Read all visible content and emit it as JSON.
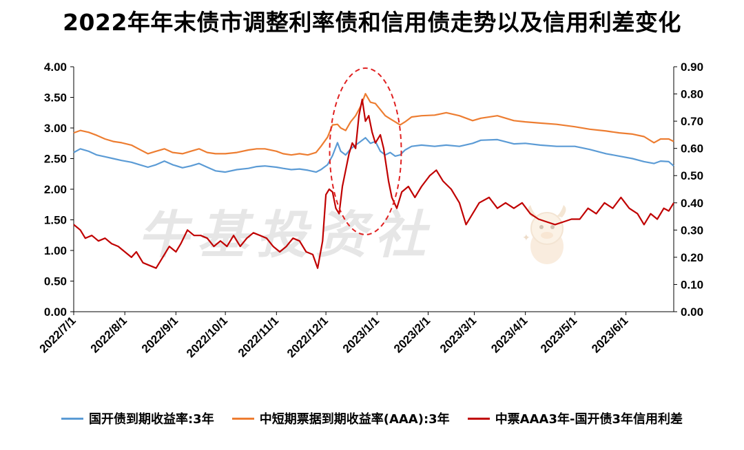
{
  "title": "2022年年末债市调整利率债和信用债走势以及信用利差变化",
  "watermark": "牛基投资社",
  "colors": {
    "blue": "#5B9BD5",
    "orange": "#ED7D31",
    "red": "#C00000",
    "axis": "#000000",
    "highlight": "#E02020"
  },
  "legend": [
    {
      "label": "国开债到期收益率:3年",
      "color": "#5B9BD5"
    },
    {
      "label": "中短期票据到期收益率(AAA):3年",
      "color": "#ED7D31"
    },
    {
      "label": "中票AAA3年-国开债3年信用利差",
      "color": "#C00000"
    }
  ],
  "chart_data": {
    "type": "line",
    "title": "2022年年末债市调整利率债和信用债走势以及信用利差变化",
    "x_tick_labels": [
      "2022/7/1",
      "2022/8/1",
      "2022/9/1",
      "2022/10/1",
      "2022/11/1",
      "2022/12/1",
      "2023/1/1",
      "2023/2/1",
      "2023/3/1",
      "2023/4/1",
      "2023/5/1",
      "2023/6/1"
    ],
    "x_range": [
      "2022/7/1",
      "2023/6/30"
    ],
    "y_left": {
      "lim": [
        0,
        4
      ],
      "ticks": [
        "0.00",
        "0.50",
        "1.00",
        "1.50",
        "2.00",
        "2.50",
        "3.00",
        "3.50",
        "4.00"
      ]
    },
    "y_right": {
      "lim": [
        0,
        0.9
      ],
      "ticks": [
        "0.00",
        "0.10",
        "0.20",
        "0.30",
        "0.40",
        "0.50",
        "0.60",
        "0.70",
        "0.80",
        "0.90"
      ]
    },
    "annotation": "dashed ellipse highlighting the December 2022 spike",
    "series": [
      {
        "name": "国开债到期收益率:3年",
        "axis": "left",
        "color": "#5B9BD5",
        "points": [
          [
            "2022/7/1",
            2.6
          ],
          [
            "2022/7/5",
            2.66
          ],
          [
            "2022/7/10",
            2.62
          ],
          [
            "2022/7/15",
            2.56
          ],
          [
            "2022/7/20",
            2.53
          ],
          [
            "2022/7/25",
            2.5
          ],
          [
            "2022/7/30",
            2.47
          ],
          [
            "2022/8/5",
            2.44
          ],
          [
            "2022/8/10",
            2.4
          ],
          [
            "2022/8/15",
            2.36
          ],
          [
            "2022/8/20",
            2.4
          ],
          [
            "2022/8/25",
            2.46
          ],
          [
            "2022/8/30",
            2.4
          ],
          [
            "2022/9/5",
            2.35
          ],
          [
            "2022/9/10",
            2.38
          ],
          [
            "2022/9/15",
            2.42
          ],
          [
            "2022/9/20",
            2.36
          ],
          [
            "2022/9/25",
            2.3
          ],
          [
            "2022/10/1",
            2.28
          ],
          [
            "2022/10/8",
            2.32
          ],
          [
            "2022/10/15",
            2.34
          ],
          [
            "2022/10/20",
            2.37
          ],
          [
            "2022/10/25",
            2.38
          ],
          [
            "2022/11/1",
            2.36
          ],
          [
            "2022/11/5",
            2.34
          ],
          [
            "2022/11/10",
            2.32
          ],
          [
            "2022/11/15",
            2.33
          ],
          [
            "2022/11/20",
            2.31
          ],
          [
            "2022/11/25",
            2.28
          ],
          [
            "2022/11/28",
            2.32
          ],
          [
            "2022/12/2",
            2.4
          ],
          [
            "2022/12/5",
            2.55
          ],
          [
            "2022/12/8",
            2.76
          ],
          [
            "2022/12/10",
            2.62
          ],
          [
            "2022/12/13",
            2.56
          ],
          [
            "2022/12/16",
            2.66
          ],
          [
            "2022/12/19",
            2.72
          ],
          [
            "2022/12/22",
            2.78
          ],
          [
            "2022/12/25",
            2.84
          ],
          [
            "2022/12/28",
            2.75
          ],
          [
            "2022/12/31",
            2.78
          ],
          [
            "2023/1/3",
            2.62
          ],
          [
            "2023/1/6",
            2.56
          ],
          [
            "2023/1/9",
            2.6
          ],
          [
            "2023/1/12",
            2.54
          ],
          [
            "2023/1/15",
            2.56
          ],
          [
            "2023/1/18",
            2.64
          ],
          [
            "2023/1/22",
            2.7
          ],
          [
            "2023/1/28",
            2.72
          ],
          [
            "2023/2/5",
            2.7
          ],
          [
            "2023/2/12",
            2.72
          ],
          [
            "2023/2/20",
            2.7
          ],
          [
            "2023/2/28",
            2.75
          ],
          [
            "2023/3/5",
            2.8
          ],
          [
            "2023/3/15",
            2.81
          ],
          [
            "2023/3/25",
            2.74
          ],
          [
            "2023/4/1",
            2.75
          ],
          [
            "2023/4/10",
            2.72
          ],
          [
            "2023/4/20",
            2.7
          ],
          [
            "2023/5/1",
            2.7
          ],
          [
            "2023/5/10",
            2.65
          ],
          [
            "2023/5/20",
            2.58
          ],
          [
            "2023/5/28",
            2.54
          ],
          [
            "2023/6/5",
            2.5
          ],
          [
            "2023/6/12",
            2.45
          ],
          [
            "2023/6/18",
            2.42
          ],
          [
            "2023/6/22",
            2.46
          ],
          [
            "2023/6/27",
            2.45
          ],
          [
            "2023/6/30",
            2.38
          ]
        ]
      },
      {
        "name": "中短期票据到期收益率(AAA):3年",
        "axis": "left",
        "color": "#ED7D31",
        "points": [
          [
            "2022/7/1",
            2.92
          ],
          [
            "2022/7/5",
            2.96
          ],
          [
            "2022/7/10",
            2.93
          ],
          [
            "2022/7/15",
            2.88
          ],
          [
            "2022/7/20",
            2.82
          ],
          [
            "2022/7/25",
            2.78
          ],
          [
            "2022/7/30",
            2.76
          ],
          [
            "2022/8/5",
            2.72
          ],
          [
            "2022/8/10",
            2.65
          ],
          [
            "2022/8/15",
            2.58
          ],
          [
            "2022/8/20",
            2.62
          ],
          [
            "2022/8/25",
            2.66
          ],
          [
            "2022/8/30",
            2.6
          ],
          [
            "2022/9/5",
            2.58
          ],
          [
            "2022/9/10",
            2.62
          ],
          [
            "2022/9/15",
            2.66
          ],
          [
            "2022/9/20",
            2.6
          ],
          [
            "2022/9/25",
            2.58
          ],
          [
            "2022/10/1",
            2.58
          ],
          [
            "2022/10/8",
            2.6
          ],
          [
            "2022/10/15",
            2.64
          ],
          [
            "2022/10/20",
            2.66
          ],
          [
            "2022/10/25",
            2.66
          ],
          [
            "2022/11/1",
            2.62
          ],
          [
            "2022/11/5",
            2.58
          ],
          [
            "2022/11/10",
            2.56
          ],
          [
            "2022/11/15",
            2.58
          ],
          [
            "2022/11/20",
            2.56
          ],
          [
            "2022/11/25",
            2.6
          ],
          [
            "2022/11/28",
            2.7
          ],
          [
            "2022/12/2",
            2.85
          ],
          [
            "2022/12/5",
            3.05
          ],
          [
            "2022/12/8",
            3.06
          ],
          [
            "2022/12/10",
            3.0
          ],
          [
            "2022/12/13",
            2.96
          ],
          [
            "2022/12/16",
            3.1
          ],
          [
            "2022/12/19",
            3.2
          ],
          [
            "2022/12/22",
            3.35
          ],
          [
            "2022/12/25",
            3.56
          ],
          [
            "2022/12/28",
            3.42
          ],
          [
            "2022/12/31",
            3.4
          ],
          [
            "2023/1/3",
            3.3
          ],
          [
            "2023/1/6",
            3.2
          ],
          [
            "2023/1/9",
            3.15
          ],
          [
            "2023/1/12",
            3.1
          ],
          [
            "2023/1/15",
            3.05
          ],
          [
            "2023/1/18",
            3.1
          ],
          [
            "2023/1/22",
            3.18
          ],
          [
            "2023/1/28",
            3.2
          ],
          [
            "2023/2/5",
            3.21
          ],
          [
            "2023/2/12",
            3.25
          ],
          [
            "2023/2/20",
            3.2
          ],
          [
            "2023/2/28",
            3.12
          ],
          [
            "2023/3/5",
            3.16
          ],
          [
            "2023/3/15",
            3.2
          ],
          [
            "2023/3/25",
            3.12
          ],
          [
            "2023/4/1",
            3.1
          ],
          [
            "2023/4/10",
            3.08
          ],
          [
            "2023/4/20",
            3.06
          ],
          [
            "2023/5/1",
            3.02
          ],
          [
            "2023/5/10",
            2.98
          ],
          [
            "2023/5/20",
            2.95
          ],
          [
            "2023/5/28",
            2.92
          ],
          [
            "2023/6/5",
            2.9
          ],
          [
            "2023/6/12",
            2.86
          ],
          [
            "2023/6/18",
            2.76
          ],
          [
            "2023/6/22",
            2.82
          ],
          [
            "2023/6/27",
            2.82
          ],
          [
            "2023/6/30",
            2.78
          ]
        ]
      },
      {
        "name": "中票AAA3年-国开债3年信用利差",
        "axis": "right",
        "color": "#C00000",
        "points": [
          [
            "2022/7/1",
            0.32
          ],
          [
            "2022/7/5",
            0.3
          ],
          [
            "2022/7/8",
            0.27
          ],
          [
            "2022/7/12",
            0.28
          ],
          [
            "2022/7/16",
            0.26
          ],
          [
            "2022/7/20",
            0.27
          ],
          [
            "2022/7/24",
            0.25
          ],
          [
            "2022/7/28",
            0.24
          ],
          [
            "2022/8/1",
            0.22
          ],
          [
            "2022/8/5",
            0.2
          ],
          [
            "2022/8/8",
            0.22
          ],
          [
            "2022/8/12",
            0.18
          ],
          [
            "2022/8/16",
            0.17
          ],
          [
            "2022/8/20",
            0.16
          ],
          [
            "2022/8/24",
            0.2
          ],
          [
            "2022/8/28",
            0.24
          ],
          [
            "2022/9/1",
            0.22
          ],
          [
            "2022/9/4",
            0.25
          ],
          [
            "2022/9/8",
            0.3
          ],
          [
            "2022/9/12",
            0.28
          ],
          [
            "2022/9/16",
            0.28
          ],
          [
            "2022/9/20",
            0.27
          ],
          [
            "2022/9/24",
            0.24
          ],
          [
            "2022/9/28",
            0.26
          ],
          [
            "2022/10/2",
            0.24
          ],
          [
            "2022/10/6",
            0.28
          ],
          [
            "2022/10/10",
            0.24
          ],
          [
            "2022/10/14",
            0.27
          ],
          [
            "2022/10/18",
            0.29
          ],
          [
            "2022/10/22",
            0.28
          ],
          [
            "2022/10/26",
            0.27
          ],
          [
            "2022/10/30",
            0.24
          ],
          [
            "2022/11/3",
            0.22
          ],
          [
            "2022/11/7",
            0.24
          ],
          [
            "2022/11/11",
            0.27
          ],
          [
            "2022/11/15",
            0.26
          ],
          [
            "2022/11/19",
            0.22
          ],
          [
            "2022/11/23",
            0.21
          ],
          [
            "2022/11/26",
            0.16
          ],
          [
            "2022/11/29",
            0.26
          ],
          [
            "2022/12/1",
            0.43
          ],
          [
            "2022/12/3",
            0.45
          ],
          [
            "2022/12/5",
            0.44
          ],
          [
            "2022/12/7",
            0.38
          ],
          [
            "2022/12/9",
            0.36
          ],
          [
            "2022/12/11",
            0.46
          ],
          [
            "2022/12/13",
            0.52
          ],
          [
            "2022/12/15",
            0.58
          ],
          [
            "2022/12/17",
            0.62
          ],
          [
            "2022/12/19",
            0.6
          ],
          [
            "2022/12/21",
            0.72
          ],
          [
            "2022/12/23",
            0.78
          ],
          [
            "2022/12/25",
            0.7
          ],
          [
            "2022/12/27",
            0.72
          ],
          [
            "2022/12/29",
            0.66
          ],
          [
            "2022/12/31",
            0.62
          ],
          [
            "2023/1/3",
            0.65
          ],
          [
            "2023/1/5",
            0.6
          ],
          [
            "2023/1/8",
            0.48
          ],
          [
            "2023/1/10",
            0.42
          ],
          [
            "2023/1/13",
            0.38
          ],
          [
            "2023/1/16",
            0.44
          ],
          [
            "2023/1/20",
            0.46
          ],
          [
            "2023/1/24",
            0.42
          ],
          [
            "2023/1/28",
            0.46
          ],
          [
            "2023/2/2",
            0.5
          ],
          [
            "2023/2/6",
            0.52
          ],
          [
            "2023/2/10",
            0.48
          ],
          [
            "2023/2/15",
            0.45
          ],
          [
            "2023/2/20",
            0.4
          ],
          [
            "2023/2/24",
            0.32
          ],
          [
            "2023/2/28",
            0.36
          ],
          [
            "2023/3/4",
            0.4
          ],
          [
            "2023/3/10",
            0.42
          ],
          [
            "2023/3/15",
            0.38
          ],
          [
            "2023/3/20",
            0.4
          ],
          [
            "2023/3/25",
            0.38
          ],
          [
            "2023/3/30",
            0.4
          ],
          [
            "2023/4/4",
            0.36
          ],
          [
            "2023/4/9",
            0.34
          ],
          [
            "2023/4/14",
            0.33
          ],
          [
            "2023/4/19",
            0.32
          ],
          [
            "2023/4/24",
            0.33
          ],
          [
            "2023/4/29",
            0.34
          ],
          [
            "2023/5/4",
            0.34
          ],
          [
            "2023/5/9",
            0.38
          ],
          [
            "2023/5/14",
            0.36
          ],
          [
            "2023/5/19",
            0.4
          ],
          [
            "2023/5/24",
            0.38
          ],
          [
            "2023/5/29",
            0.42
          ],
          [
            "2023/6/3",
            0.38
          ],
          [
            "2023/6/8",
            0.36
          ],
          [
            "2023/6/12",
            0.32
          ],
          [
            "2023/6/16",
            0.36
          ],
          [
            "2023/6/20",
            0.34
          ],
          [
            "2023/6/24",
            0.38
          ],
          [
            "2023/6/27",
            0.37
          ],
          [
            "2023/6/30",
            0.4
          ]
        ]
      }
    ]
  }
}
